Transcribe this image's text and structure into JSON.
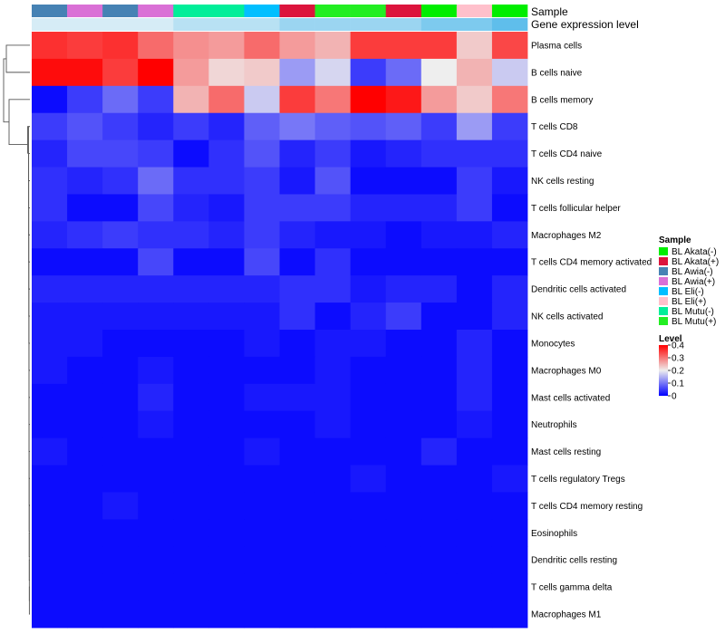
{
  "chart_data": {
    "type": "heatmap",
    "annotation_labels": [
      "Sample",
      "Gene expression level"
    ],
    "sample_annotation": [
      "BL Awia(-)",
      "BL Awia(+)",
      "BL Awia(-)",
      "BL Awia(+)",
      "BL Mutu(-)",
      "BL Mutu(-)",
      "BL Eli(-)",
      "BL Akata(+)",
      "BL Mutu(+)",
      "BL Mutu(+)",
      "BL Akata(+)",
      "BL Akata(-)",
      "BL Eli(+)",
      "BL Akata(-)"
    ],
    "expression_annotation": [
      0.2,
      0.2,
      0.2,
      0.2,
      0.25,
      0.25,
      0.25,
      0.3,
      0.3,
      0.3,
      0.3,
      0.35,
      0.35,
      0.4
    ],
    "rows": [
      "Plasma cells",
      "B cells naive",
      "B cells memory",
      "T cells CD8",
      "T cells CD4 naive",
      "NK cells resting",
      "T cells follicular helper",
      "Macrophages M2",
      "T cells CD4 memory activated",
      "Dendritic cells activated",
      "NK cells activated",
      "Monocytes",
      "Macrophages M0",
      "Mast cells activated",
      "Neutrophils",
      "Mast cells resting",
      "T cells regulatory  Tregs",
      "T cells CD4 memory resting",
      "Eosinophils",
      "Dendritic cells resting",
      "T cells gamma delta",
      "Macrophages M1"
    ],
    "values": [
      [
        0.36,
        0.35,
        0.36,
        0.31,
        0.28,
        0.27,
        0.31,
        0.27,
        0.25,
        0.35,
        0.35,
        0.35,
        0.23,
        0.34
      ],
      [
        0.39,
        0.39,
        0.35,
        0.4,
        0.27,
        0.22,
        0.23,
        0.13,
        0.18,
        0.05,
        0.09,
        0.2,
        0.25,
        0.17
      ],
      [
        0.01,
        0.05,
        0.09,
        0.05,
        0.25,
        0.31,
        0.17,
        0.35,
        0.3,
        0.4,
        0.38,
        0.27,
        0.23,
        0.3
      ],
      [
        0.05,
        0.07,
        0.05,
        0.03,
        0.05,
        0.03,
        0.08,
        0.1,
        0.08,
        0.07,
        0.08,
        0.05,
        0.13,
        0.05
      ],
      [
        0.03,
        0.06,
        0.06,
        0.05,
        0.01,
        0.04,
        0.07,
        0.03,
        0.05,
        0.02,
        0.03,
        0.04,
        0.04,
        0.04
      ],
      [
        0.04,
        0.03,
        0.04,
        0.09,
        0.04,
        0.04,
        0.05,
        0.02,
        0.07,
        0.01,
        0.01,
        0.01,
        0.05,
        0.02
      ],
      [
        0.04,
        0.01,
        0.01,
        0.06,
        0.03,
        0.02,
        0.05,
        0.05,
        0.05,
        0.03,
        0.03,
        0.03,
        0.05,
        0.01
      ],
      [
        0.03,
        0.04,
        0.05,
        0.04,
        0.04,
        0.03,
        0.05,
        0.03,
        0.02,
        0.02,
        0.01,
        0.02,
        0.02,
        0.03
      ],
      [
        0.01,
        0.01,
        0.01,
        0.06,
        0.01,
        0.01,
        0.06,
        0.01,
        0.04,
        0.01,
        0.01,
        0.01,
        0.01,
        0.01
      ],
      [
        0.03,
        0.03,
        0.03,
        0.03,
        0.03,
        0.03,
        0.03,
        0.04,
        0.04,
        0.02,
        0.03,
        0.03,
        0.01,
        0.03
      ],
      [
        0.02,
        0.02,
        0.02,
        0.02,
        0.02,
        0.02,
        0.02,
        0.04,
        0.01,
        0.03,
        0.05,
        0.01,
        0.01,
        0.03
      ],
      [
        0.02,
        0.02,
        0.01,
        0.01,
        0.01,
        0.01,
        0.02,
        0.01,
        0.02,
        0.02,
        0.01,
        0.01,
        0.03,
        0.01
      ],
      [
        0.02,
        0.01,
        0.01,
        0.02,
        0.01,
        0.01,
        0.01,
        0.01,
        0.02,
        0.01,
        0.01,
        0.01,
        0.03,
        0.01
      ],
      [
        0.01,
        0.01,
        0.01,
        0.03,
        0.01,
        0.01,
        0.02,
        0.02,
        0.02,
        0.01,
        0.01,
        0.01,
        0.03,
        0.01
      ],
      [
        0.01,
        0.01,
        0.01,
        0.02,
        0.01,
        0.01,
        0.01,
        0.01,
        0.02,
        0.01,
        0.01,
        0.01,
        0.02,
        0.01
      ],
      [
        0.02,
        0.01,
        0.01,
        0.01,
        0.01,
        0.01,
        0.02,
        0.01,
        0.01,
        0.01,
        0.01,
        0.03,
        0.01,
        0.01
      ],
      [
        0.01,
        0.01,
        0.01,
        0.01,
        0.01,
        0.01,
        0.01,
        0.01,
        0.01,
        0.02,
        0.01,
        0.01,
        0.01,
        0.02
      ],
      [
        0.01,
        0.01,
        0.02,
        0.01,
        0.01,
        0.01,
        0.01,
        0.01,
        0.01,
        0.01,
        0.01,
        0.01,
        0.01,
        0.01
      ],
      [
        0.01,
        0.01,
        0.01,
        0.01,
        0.01,
        0.01,
        0.01,
        0.01,
        0.01,
        0.01,
        0.01,
        0.01,
        0.01,
        0.01
      ],
      [
        0.01,
        0.01,
        0.01,
        0.01,
        0.01,
        0.01,
        0.01,
        0.01,
        0.01,
        0.01,
        0.01,
        0.01,
        0.01,
        0.01
      ],
      [
        0.01,
        0.01,
        0.01,
        0.01,
        0.01,
        0.01,
        0.01,
        0.01,
        0.01,
        0.01,
        0.01,
        0.01,
        0.01,
        0.01
      ],
      [
        0.01,
        0.01,
        0.01,
        0.01,
        0.01,
        0.01,
        0.01,
        0.01,
        0.01,
        0.01,
        0.01,
        0.01,
        0.01,
        0.01
      ]
    ],
    "color_scale": {
      "min": 0,
      "max": 0.4,
      "colors": [
        "#0000ff",
        "#eeeeee",
        "#ff0000"
      ]
    },
    "legends": [
      {
        "title": "Sample",
        "entries": [
          {
            "label": "BL Akata(-)",
            "color": "#00ee00"
          },
          {
            "label": "BL Akata(+)",
            "color": "#dc143c"
          },
          {
            "label": "BL Awia(-)",
            "color": "#4682b4"
          },
          {
            "label": "BL Awia(+)",
            "color": "#da70d6"
          },
          {
            "label": "BL Eli(-)",
            "color": "#00bfff"
          },
          {
            "label": "BL Eli(+)",
            "color": "#ffc0cb"
          },
          {
            "label": "BL Mutu(-)",
            "color": "#00ee99"
          },
          {
            "label": "BL Mutu(+)",
            "color": "#22ee22"
          }
        ]
      },
      {
        "title": "Level",
        "ticks": [
          "0.4",
          "0.3",
          "0.2",
          "0.1",
          "0"
        ],
        "tick_values": [
          0.4,
          0.3,
          0.2,
          0.1,
          0
        ]
      }
    ],
    "dendrogram": "row",
    "legend_position": "right"
  }
}
